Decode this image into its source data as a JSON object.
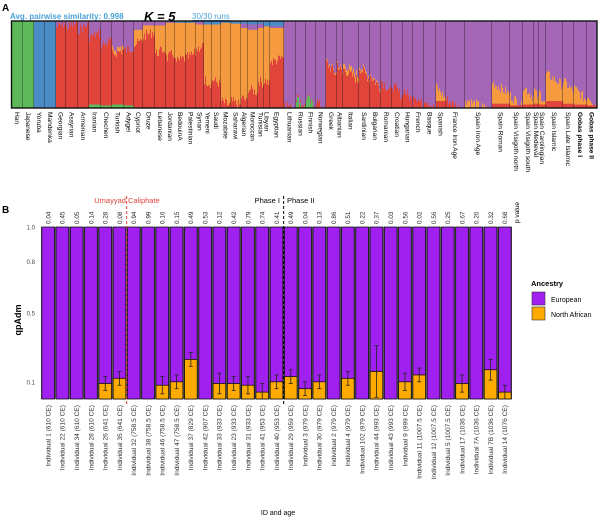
{
  "panel_a": {
    "letter": "A",
    "similarity_label": "Avg. pairwise similarity: 0.998",
    "k_label": "K = 5",
    "runs_label": "30/30 runs",
    "colors": {
      "green": "#5db95a",
      "blue": "#4a8cc6",
      "red": "#e0443b",
      "orange": "#f59a3e",
      "purple": "#a467b5",
      "label_blue": "#4aa3d8"
    }
  },
  "panel_b": {
    "letter": "B",
    "umayyad_label": "Umayyad Caliphate",
    "phase1_label": "Phase I",
    "phase2_label": "Phase II",
    "pvalue_label": "p value",
    "legend": {
      "title": "Ancestry",
      "items": [
        {
          "label": "European",
          "color": "#a020f0"
        },
        {
          "label": "North African",
          "color": "#ffaa00"
        }
      ]
    },
    "colors": {
      "umayyad_line": "#e0443b",
      "phase_line": "#000000"
    }
  },
  "chart_data": [
    {
      "type": "bar",
      "subtype": "stacked structure plot (ADMIXTURE, K=5)",
      "components": [
        "green",
        "blue",
        "red",
        "orange",
        "purple"
      ],
      "ylim": [
        0,
        1
      ],
      "categories": [
        "Han",
        "Japanese",
        "Yoruba",
        "Mandenka",
        "Georgian",
        "Assyrian",
        "Armenian",
        "Iranian",
        "Chechen",
        "Turkish",
        "Adygei",
        "Cypriot",
        "Druze",
        "Lebanese",
        "Jordanian",
        "BedouinA",
        "Palestinian",
        "Syrian",
        "Yemeni",
        "Saudi",
        "Mozabite",
        "Saharawi",
        "Algerian",
        "Moroccan",
        "Tunisian",
        "Libyan",
        "Egyptian",
        "Lithuanian",
        "Russian",
        "Finnish",
        "Norwegian",
        "Greek",
        "Albanian",
        "Italian",
        "Sardinian",
        "Bulgarian",
        "Romanian",
        "Croatian",
        "Hungarian",
        "French",
        "Basque",
        "Spanish",
        "France Iron Age",
        "Spain Iron Age",
        "Spain Roman",
        "Spain Visigoth north",
        "Spain Visigoth south",
        "Spain Medieval",
        "Spain Carolingian",
        "Spain Islamic",
        "Spain Late Islamic",
        "Gobas phase I",
        "Gobas phase II"
      ],
      "bold_categories": [
        "Gobas phase I",
        "Gobas phase II"
      ],
      "proportions": [
        [
          1,
          0,
          0,
          0,
          0
        ],
        [
          1,
          0,
          0,
          0,
          0
        ],
        [
          0,
          1,
          0,
          0,
          0
        ],
        [
          0,
          1,
          0,
          0,
          0
        ],
        [
          0,
          0,
          0.95,
          0,
          0.05
        ],
        [
          0,
          0,
          0.95,
          0,
          0.05
        ],
        [
          0,
          0,
          0.93,
          0,
          0.07
        ],
        [
          0.04,
          0,
          0.8,
          0,
          0.16
        ],
        [
          0.03,
          0,
          0.72,
          0,
          0.25
        ],
        [
          0.04,
          0,
          0.6,
          0.05,
          0.31
        ],
        [
          0.03,
          0,
          0.65,
          0,
          0.32
        ],
        [
          0,
          0,
          0.75,
          0.15,
          0.1
        ],
        [
          0,
          0,
          0.85,
          0.1,
          0.05
        ],
        [
          0,
          0,
          0.65,
          0.3,
          0.05
        ],
        [
          0,
          0.01,
          0.6,
          0.38,
          0.01
        ],
        [
          0,
          0.02,
          0.55,
          0.43,
          0
        ],
        [
          0,
          0.02,
          0.6,
          0.38,
          0
        ],
        [
          0,
          0.01,
          0.7,
          0.26,
          0.03
        ],
        [
          0,
          0.04,
          0.3,
          0.66,
          0
        ],
        [
          0,
          0.04,
          0.3,
          0.66,
          0
        ],
        [
          0,
          0.02,
          0.05,
          0.93,
          0
        ],
        [
          0,
          0.03,
          0.05,
          0.92,
          0
        ],
        [
          0,
          0.03,
          0.1,
          0.82,
          0.05
        ],
        [
          0,
          0.04,
          0.2,
          0.7,
          0.06
        ],
        [
          0,
          0.03,
          0.3,
          0.62,
          0.05
        ],
        [
          0,
          0.06,
          0.3,
          0.64,
          0
        ],
        [
          0,
          0.06,
          0.55,
          0.37,
          0.02
        ],
        [
          0,
          0,
          0.01,
          0,
          0.99
        ],
        [
          0.05,
          0,
          0.02,
          0,
          0.93
        ],
        [
          0.06,
          0,
          0.01,
          0,
          0.93
        ],
        [
          0,
          0,
          0.02,
          0,
          0.98
        ],
        [
          0,
          0,
          0.45,
          0.02,
          0.53
        ],
        [
          0,
          0,
          0.45,
          0.02,
          0.53
        ],
        [
          0,
          0,
          0.38,
          0.06,
          0.56
        ],
        [
          0,
          0,
          0.4,
          0.03,
          0.57
        ],
        [
          0,
          0,
          0.3,
          0.02,
          0.68
        ],
        [
          0,
          0,
          0.25,
          0,
          0.75
        ],
        [
          0,
          0,
          0.2,
          0,
          0.8
        ],
        [
          0,
          0,
          0.15,
          0,
          0.85
        ],
        [
          0,
          0,
          0.1,
          0,
          0.9
        ],
        [
          0,
          0,
          0.05,
          0,
          0.95
        ],
        [
          0,
          0,
          0.08,
          0.1,
          0.82
        ],
        [
          0,
          0,
          0.03,
          0,
          0.97
        ],
        [
          0,
          0,
          0,
          0.03,
          0.97
        ],
        [
          0,
          0,
          0.05,
          0.18,
          0.77
        ],
        [
          0,
          0,
          0.03,
          0.05,
          0.92
        ],
        [
          0,
          0,
          0.04,
          0.15,
          0.81
        ],
        [
          0,
          0,
          0.05,
          0.1,
          0.85
        ],
        [
          0,
          0,
          0.04,
          0.08,
          0.88
        ],
        [
          0,
          0,
          0.08,
          0.25,
          0.67
        ],
        [
          0,
          0,
          0.05,
          0.2,
          0.75
        ],
        [
          0,
          0,
          0.04,
          0.12,
          0.84
        ],
        [
          0,
          0,
          0.03,
          0.06,
          0.91
        ]
      ]
    },
    {
      "type": "bar",
      "subtype": "stacked with error bars",
      "xlabel": "ID and age",
      "ylabel": "qpAdm",
      "ylim": [
        0,
        1
      ],
      "yticks": [
        0.1,
        0.5,
        0.8,
        1.0
      ],
      "ytick_labels": [
        "0.1",
        "0.5",
        "0.8",
        "1.0"
      ],
      "categories": [
        "Individual 1 (610 CE)",
        "Individual 22 (610 CE)",
        "Individual 34 (610 CE)",
        "Individual 28 (610 CE)",
        "Individual 26 (641 CE)",
        "Individual 35 (641 CE)",
        "Individual 32 (758.5 CE)",
        "Individual 38 (758.5 CE)",
        "Individual 46 (758.5 CE)",
        "Individual 47 (758.5 CE)",
        "Individual 37 (829 CE)",
        "Individual 42 (907 CE)",
        "Individual 33 (933 CE)",
        "Individual 23 (933 CE)",
        "Individual 31 (933 CE)",
        "Individual 41 (953 CE)",
        "Individual 40 (953 CE)",
        "Individual 29 (959 CE)",
        "Individual 3 (979 CE)",
        "Individual 30 (979 CE)",
        "Individual 2 (979 CE)",
        "Individual 4 (979 CE)",
        "Individual 102 (979 CE)",
        "Individual 44 (993 CE)",
        "Individual 43 (993 CE)",
        "Individual 9 (999 CE)",
        "Individual 11 (1007.5 CE)",
        "Individual 12 (1007.5 CE)",
        "Individual 5 (1007.5 CE)",
        "Individual 17 (1036 CE)",
        "Individual 7A (1036 CE)",
        "Individual 7B (1036 CE)",
        "Individual 14 (1076 CE)"
      ],
      "p_values": [
        "0.04",
        "0.45",
        "0.05",
        "0.14",
        "0.28",
        "0.08",
        "0.94",
        "0.99",
        "0.16",
        "0.15",
        "0.49",
        "0.53",
        "0.12",
        "0.42",
        "0.79",
        "0.74",
        "0.41",
        "0.49",
        "0.04",
        "0.13",
        "0.86",
        "0.51",
        "0.22",
        "0.37",
        "0.03",
        "0.56",
        "0.02",
        "0.56",
        "0.25",
        "0.67",
        "0.20",
        "0.32",
        "0.68"
      ],
      "series": [
        {
          "name": "North African",
          "values": [
            0,
            0,
            0,
            0,
            0.09,
            0.12,
            0,
            0,
            0.08,
            0.1,
            0.23,
            0,
            0.09,
            0.09,
            0.08,
            0.04,
            0.1,
            0.13,
            0.06,
            0.1,
            0,
            0.12,
            0,
            0.16,
            0,
            0.1,
            0.14,
            0,
            0,
            0.09,
            0,
            0.17,
            0.04
          ],
          "errors": [
            0,
            0,
            0,
            0,
            0.04,
            0.04,
            0,
            0,
            0.05,
            0.04,
            0.04,
            0,
            0.06,
            0.04,
            0.05,
            0.05,
            0.04,
            0.04,
            0.04,
            0.04,
            0,
            0.04,
            0,
            0.15,
            0,
            0.05,
            0.04,
            0,
            0,
            0.05,
            0,
            0.06,
            0.04
          ]
        },
        {
          "name": "European",
          "values": [
            1,
            1,
            1,
            1,
            0.91,
            0.88,
            1,
            1,
            0.92,
            0.9,
            0.77,
            1,
            0.91,
            0.91,
            0.92,
            0.96,
            0.9,
            0.87,
            0.94,
            0.9,
            1,
            0.88,
            1,
            0.84,
            1,
            0.9,
            0.86,
            1,
            1,
            0.91,
            1,
            0.83,
            0.96
          ]
        }
      ],
      "umayyad_boundary_after": "Individual 35 (641 CE)",
      "phase_boundary_after": "Individual 40 (953 CE)",
      "legend_placement": "right"
    }
  ]
}
